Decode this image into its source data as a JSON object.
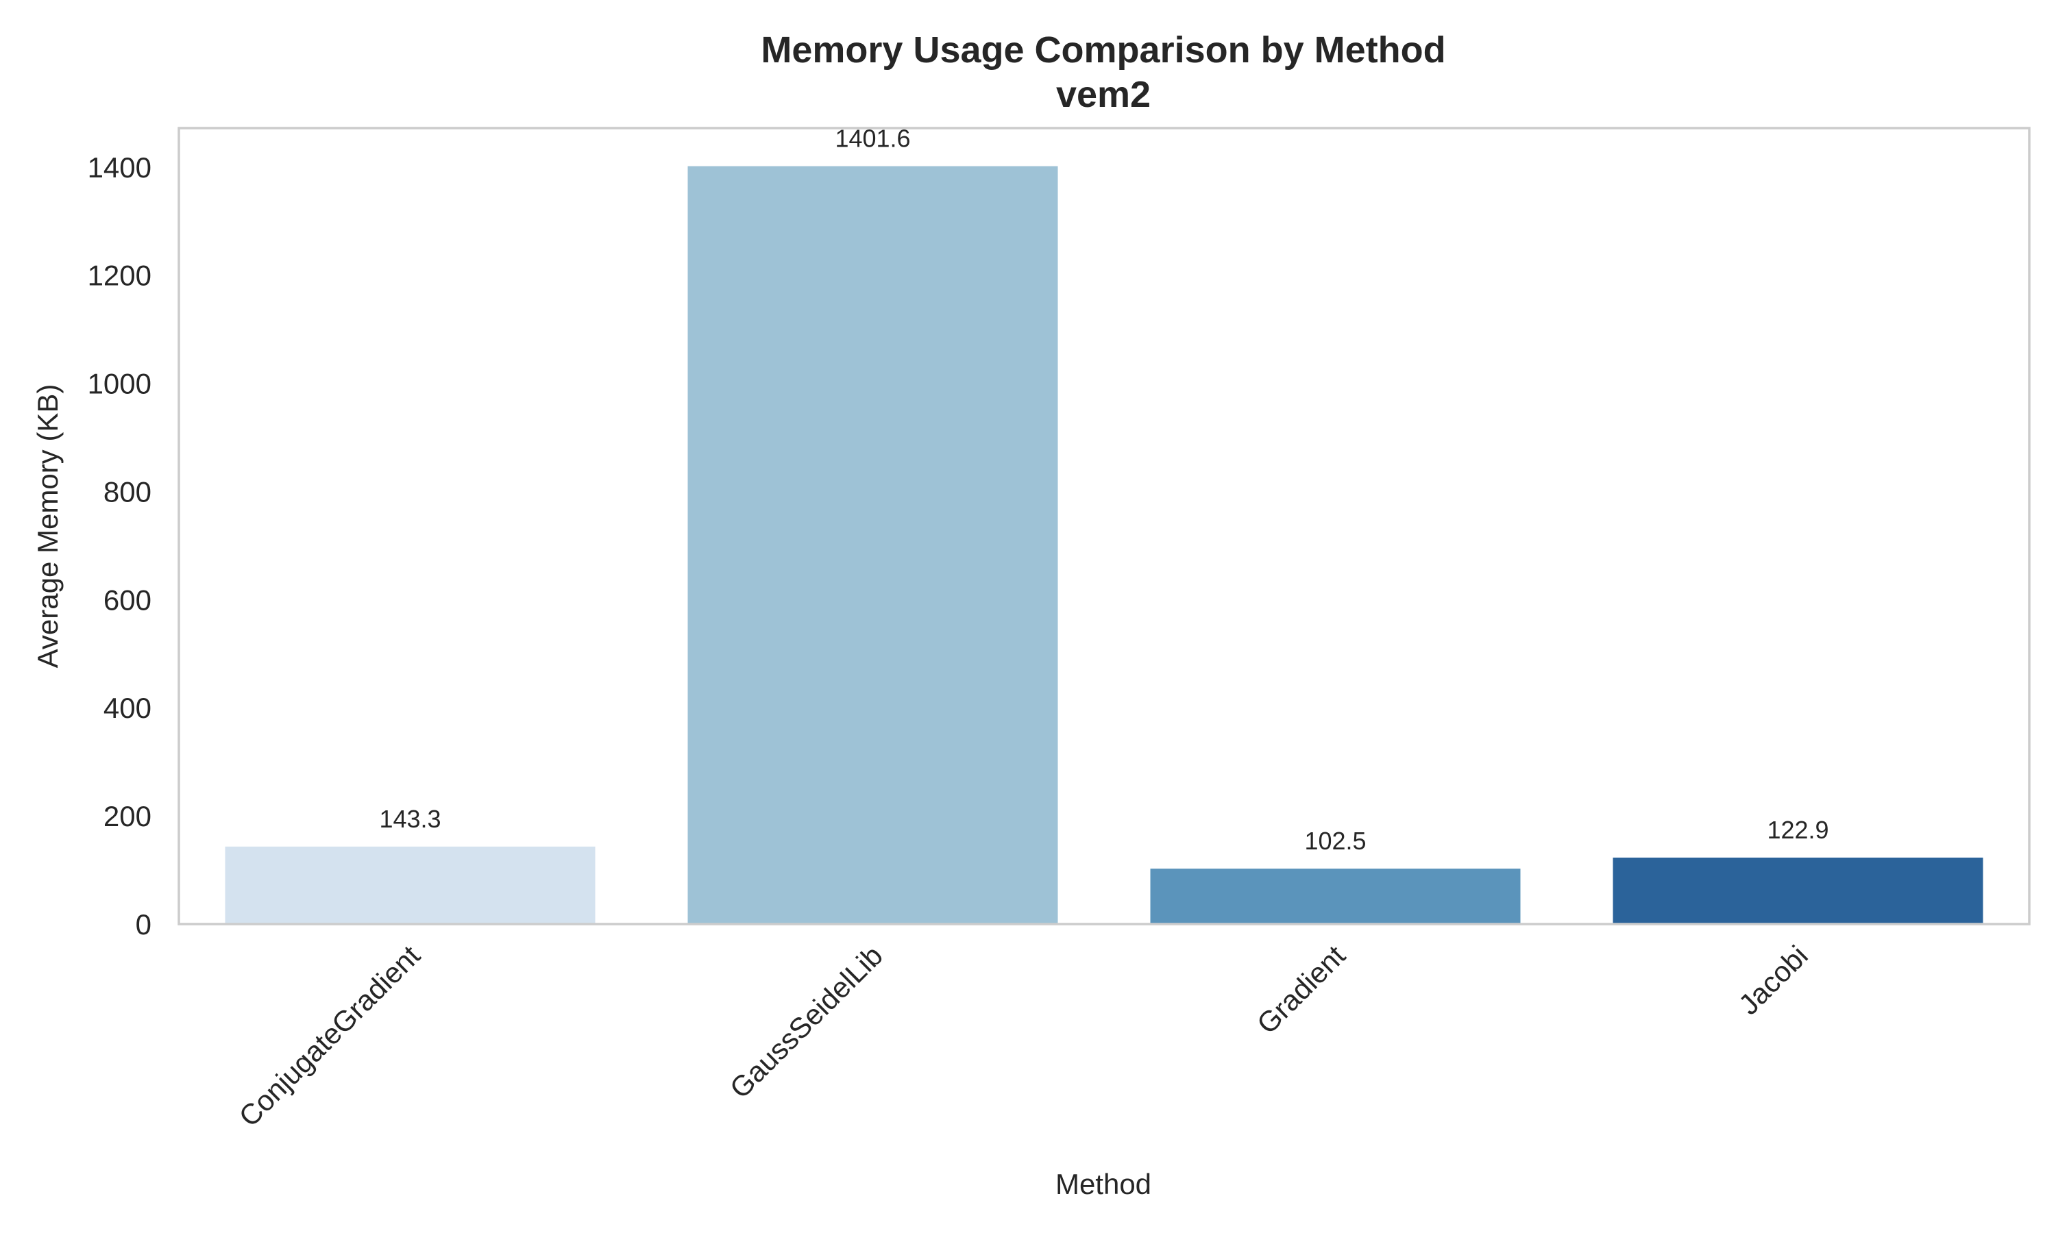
{
  "chart_data": {
    "type": "bar",
    "title": "Memory Usage Comparison by Method",
    "subtitle": "vem2",
    "xlabel": "Method",
    "ylabel": "Average Memory (KB)",
    "categories": [
      "ConjugateGradient",
      "GaussSeidelLib",
      "Gradient",
      "Jacobi"
    ],
    "values": [
      143.3,
      1401.6,
      102.5,
      122.9
    ],
    "value_labels": [
      "143.3",
      "1401.6",
      "102.5",
      "122.9"
    ],
    "colors": [
      "#d4e2ef",
      "#9ec2d6",
      "#5b94bb",
      "#2b639a"
    ],
    "ylim": [
      0,
      1472
    ],
    "yticks": [
      0,
      200,
      400,
      600,
      800,
      1000,
      1200,
      1400
    ],
    "grid": false,
    "legend": "none"
  }
}
